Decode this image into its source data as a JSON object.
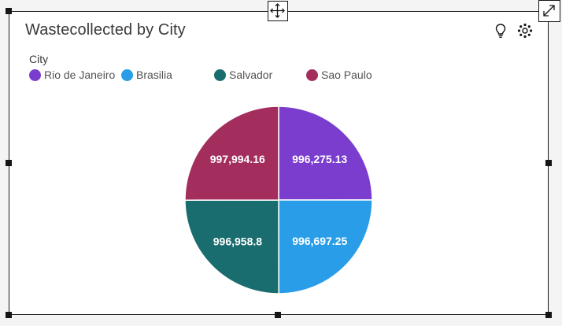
{
  "widget": {
    "title": "Wastecollected by City",
    "legend_title": "City"
  },
  "icons": {
    "insight": "lightbulb-icon",
    "settings": "settings-icon",
    "move": "move-icon",
    "expand": "expand-icon"
  },
  "chart_data": {
    "type": "pie",
    "title": "Wastecollected by City",
    "legend_title": "City",
    "legend_position": "top-left",
    "slices": [
      {
        "label": "Rio de Janeiro",
        "value": 996275.13,
        "display": "996,275.13",
        "color": "#7a3dce"
      },
      {
        "label": "Brasilia",
        "value": 996697.25,
        "display": "996,697.25",
        "color": "#2a9de8"
      },
      {
        "label": "Salvador",
        "value": 996958.8,
        "display": "996,958.8",
        "color": "#196d6e"
      },
      {
        "label": "Sao Paulo",
        "value": 997994.16,
        "display": "997,994.16",
        "color": "#a32e5e"
      }
    ]
  }
}
